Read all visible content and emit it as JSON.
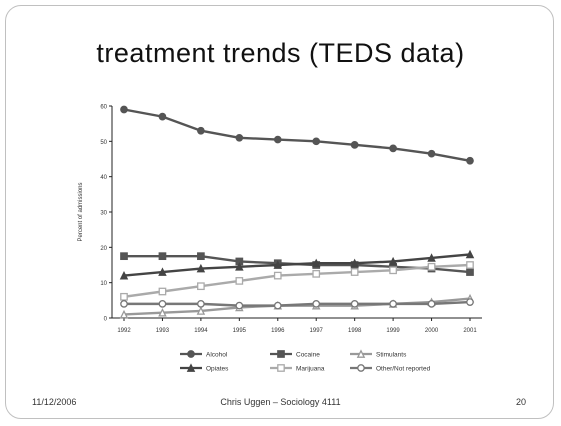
{
  "slide": {
    "title": "treatment trends (TEDS data)",
    "footer_date": "11/12/2006",
    "footer_author": "Chris Uggen – Sociology 4111",
    "page_number": "20"
  },
  "chart_data": {
    "type": "line",
    "title": "",
    "xlabel": "",
    "ylabel": "Percent of admissions",
    "categories": [
      "1992",
      "1993",
      "1994",
      "1995",
      "1996",
      "1997",
      "1998",
      "1999",
      "2000",
      "2001"
    ],
    "yticks": [
      "0",
      "10",
      "20",
      "30",
      "40",
      "50",
      "60"
    ],
    "ylim": [
      0,
      60
    ],
    "grid": false,
    "legend_position": "bottom",
    "series": [
      {
        "name": "Alcohol",
        "marker": "circle-filled",
        "color": "#555555",
        "values": [
          59,
          57,
          53,
          51,
          50.5,
          50,
          49,
          48,
          46.5,
          44.5
        ]
      },
      {
        "name": "Cocaine",
        "marker": "square-filled",
        "color": "#555555",
        "values": [
          17.5,
          17.5,
          17.5,
          16,
          15.5,
          15,
          15,
          14.5,
          14,
          13
        ]
      },
      {
        "name": "Stimulants",
        "marker": "triangle-open",
        "color": "#999999",
        "values": [
          1,
          1.5,
          2,
          3,
          3.5,
          3.5,
          3.5,
          4,
          4.5,
          5.5
        ]
      },
      {
        "name": "Opiates",
        "marker": "triangle-filled",
        "color": "#444444",
        "values": [
          12,
          13,
          14,
          14.5,
          15,
          15.5,
          15.5,
          16,
          17,
          18
        ]
      },
      {
        "name": "Marijuana",
        "marker": "square-open",
        "color": "#aaaaaa",
        "values": [
          6,
          7.5,
          9,
          10.5,
          12,
          12.5,
          13,
          13.5,
          14.5,
          15
        ]
      },
      {
        "name": "Other/Not reported",
        "marker": "circle-open",
        "color": "#777777",
        "values": [
          4,
          4,
          4,
          3.5,
          3.5,
          4,
          4,
          4,
          4,
          4.5
        ]
      }
    ]
  }
}
